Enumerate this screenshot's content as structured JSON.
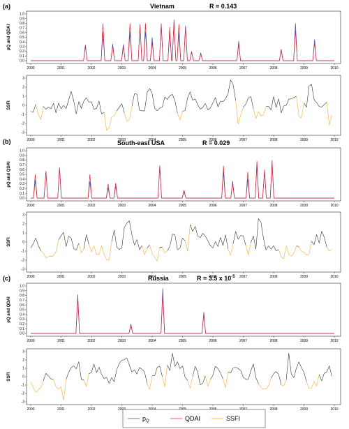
{
  "panels": [
    {
      "label": "(a)",
      "title": "Vietnam",
      "stat": "R = 0.143",
      "top": {
        "ylabel": "pQ and QDAI",
        "ylim": [
          0,
          1
        ],
        "yticks": [
          "0.0",
          "0.1",
          "0.2",
          "0.3",
          "0.4",
          "0.5",
          "0.6",
          "0.7",
          "0.8",
          "0.9",
          "1.0"
        ],
        "xticks": [
          "2000",
          "2001",
          "2002",
          "2003",
          "2004",
          "2005",
          "2006",
          "2007",
          "2008",
          "2009",
          "2010"
        ]
      },
      "bottom": {
        "ylabel": "SSFI",
        "ylim": [
          -3,
          3
        ],
        "yticks": [
          "3",
          "2",
          "1",
          "0",
          "-1",
          "-2",
          "-3"
        ],
        "xticks": [
          "2000",
          "2001",
          "2002",
          "2003",
          "2004",
          "2005",
          "2006",
          "2007",
          "2008",
          "2009",
          "2010"
        ]
      }
    },
    {
      "label": "(b)",
      "title": "South-east USA",
      "stat": "R = 0.029",
      "top": {
        "ylabel": "pQ and QDAI",
        "ylim": [
          0,
          1
        ],
        "yticks": [
          "0.0",
          "0.1",
          "0.2",
          "0.3",
          "0.4",
          "0.5",
          "0.6",
          "0.7",
          "0.8",
          "0.9",
          "1.0"
        ],
        "xticks": [
          "2000",
          "2001",
          "2002",
          "2003",
          "2004",
          "2005",
          "2006",
          "2007",
          "2008",
          "2009",
          "2010"
        ]
      },
      "bottom": {
        "ylabel": "SSFI",
        "ylim": [
          -3,
          3
        ],
        "yticks": [
          "3",
          "2",
          "1",
          "0",
          "-1",
          "-2",
          "-3"
        ],
        "xticks": [
          "2000",
          "2001",
          "2002",
          "2003",
          "2004",
          "2005",
          "2006",
          "2007",
          "2008",
          "2009",
          "2010"
        ]
      }
    },
    {
      "label": "(c)",
      "title": "Russia",
      "stat": "R = 3.5 x 10",
      "stat_exp": "-5",
      "top": {
        "ylabel": "pQ and QDAI",
        "ylim": [
          0,
          1
        ],
        "yticks": [
          "0.0",
          "0.1",
          "0.2",
          "0.3",
          "0.4",
          "0.5",
          "0.6",
          "0.7",
          "0.8",
          "0.9",
          "1.0"
        ],
        "xticks": [
          "2000",
          "2001",
          "2002",
          "2003",
          "2004",
          "2005",
          "2006",
          "2007",
          "2008",
          "2009",
          "2010"
        ]
      },
      "bottom": {
        "ylabel": "SSFI",
        "ylim": [
          -3,
          3
        ],
        "yticks": [
          "3",
          "2",
          "1",
          "0",
          "-1",
          "-2",
          "-3"
        ],
        "xticks": [
          "2000",
          "2001",
          "2002",
          "2003",
          "2004",
          "2005",
          "2006",
          "2007",
          "2008",
          "2009",
          "2010"
        ]
      }
    }
  ],
  "legend": {
    "items": [
      {
        "label": "p",
        "sub": "Q",
        "color": "#3f48cc"
      },
      {
        "label": "QDAI",
        "color": "#e0252c"
      },
      {
        "label": "SSFI",
        "color": "#f5a623"
      }
    ]
  },
  "chart_data": [
    {
      "type": "line",
      "title": "Vietnam",
      "ylabel": "pQ and QDAI",
      "xlim": [
        2000,
        2010
      ],
      "ylim": [
        0,
        1
      ],
      "series": [
        {
          "name": "pQ",
          "color": "#3f48cc",
          "events": [
            [
              2001.8,
              0.34
            ],
            [
              2002.38,
              0.62
            ],
            [
              2002.7,
              0.36
            ],
            [
              2003.05,
              0.35
            ],
            [
              2003.27,
              0.62
            ],
            [
              2003.6,
              0.78
            ],
            [
              2003.78,
              0.62
            ],
            [
              2004.0,
              0.5
            ],
            [
              2004.3,
              0.75
            ],
            [
              2004.58,
              0.62
            ],
            [
              2004.72,
              0.82
            ],
            [
              2004.88,
              0.62
            ],
            [
              2005.1,
              0.75
            ],
            [
              2005.3,
              0.2
            ],
            [
              2005.6,
              0.17
            ],
            [
              2006.85,
              0.42
            ],
            [
              2008.25,
              0.22
            ],
            [
              2008.72,
              0.8
            ],
            [
              2009.35,
              0.45
            ]
          ]
        },
        {
          "name": "QDAI",
          "color": "#e0252c",
          "events": [
            [
              2001.8,
              0.3
            ],
            [
              2002.38,
              0.8
            ],
            [
              2002.7,
              0.32
            ],
            [
              2003.05,
              0.3
            ],
            [
              2003.27,
              0.8
            ],
            [
              2003.6,
              0.75
            ],
            [
              2003.78,
              0.8
            ],
            [
              2004.0,
              0.4
            ],
            [
              2004.3,
              0.8
            ],
            [
              2004.58,
              0.72
            ],
            [
              2004.72,
              0.88
            ],
            [
              2004.88,
              0.78
            ],
            [
              2005.1,
              0.7
            ],
            [
              2005.3,
              0.18
            ],
            [
              2005.6,
              0.15
            ],
            [
              2006.85,
              0.36
            ],
            [
              2008.25,
              0.25
            ],
            [
              2008.72,
              0.65
            ],
            [
              2009.35,
              0.38
            ]
          ]
        }
      ]
    },
    {
      "type": "line",
      "title": "Vietnam",
      "ylabel": "SSFI",
      "xlim": [
        2000,
        2010
      ],
      "ylim": [
        -3,
        3
      ],
      "series": [
        {
          "name": "SSFI",
          "color": "#f5a623",
          "threshold": -1,
          "seed": 11
        }
      ]
    },
    {
      "type": "line",
      "title": "South-east USA",
      "ylabel": "pQ and QDAI",
      "xlim": [
        2000,
        2010
      ],
      "ylim": [
        0,
        1
      ],
      "series": [
        {
          "name": "pQ",
          "color": "#3f48cc",
          "events": [
            [
              2000.15,
              0.38
            ],
            [
              2000.5,
              0.55
            ],
            [
              2000.95,
              0.62
            ],
            [
              2001.95,
              0.35
            ],
            [
              2002.55,
              0.22
            ],
            [
              2002.8,
              0.25
            ],
            [
              2004.25,
              0.66
            ],
            [
              2005.05,
              0.14
            ],
            [
              2006.35,
              0.55
            ],
            [
              2006.65,
              0.36
            ],
            [
              2007.15,
              0.4
            ],
            [
              2007.45,
              0.68
            ],
            [
              2007.7,
              0.55
            ],
            [
              2007.95,
              0.72
            ]
          ]
        },
        {
          "name": "QDAI",
          "color": "#e0252c",
          "events": [
            [
              2000.15,
              0.5
            ],
            [
              2000.5,
              0.57
            ],
            [
              2000.95,
              0.65
            ],
            [
              2001.95,
              0.5
            ],
            [
              2002.55,
              0.3
            ],
            [
              2002.8,
              0.32
            ],
            [
              2004.25,
              0.69
            ],
            [
              2005.05,
              0.17
            ],
            [
              2006.35,
              0.68
            ],
            [
              2006.65,
              0.32
            ],
            [
              2007.15,
              0.55
            ],
            [
              2007.45,
              0.78
            ],
            [
              2007.7,
              0.6
            ],
            [
              2007.95,
              0.8
            ]
          ]
        }
      ]
    },
    {
      "type": "line",
      "title": "South-east USA",
      "ylabel": "SSFI",
      "xlim": [
        2000,
        2010
      ],
      "ylim": [
        -3,
        3
      ],
      "series": [
        {
          "name": "SSFI",
          "color": "#f5a623",
          "threshold": -1,
          "seed": 23
        }
      ]
    },
    {
      "type": "line",
      "title": "Russia",
      "ylabel": "pQ and QDAI",
      "xlim": [
        2000,
        2010
      ],
      "ylim": [
        0,
        1
      ],
      "series": [
        {
          "name": "pQ",
          "color": "#3f48cc",
          "events": [
            [
              2001.55,
              0.82
            ],
            [
              2003.3,
              0.2
            ],
            [
              2004.35,
              0.95
            ],
            [
              2005.7,
              0.45
            ]
          ]
        },
        {
          "name": "QDAI",
          "color": "#e0252c",
          "events": [
            [
              2001.55,
              0.75
            ],
            [
              2003.3,
              0.18
            ],
            [
              2004.35,
              0.82
            ],
            [
              2005.7,
              0.4
            ]
          ]
        }
      ]
    },
    {
      "type": "line",
      "title": "Russia",
      "ylabel": "SSFI",
      "xlim": [
        2000,
        2010
      ],
      "ylim": [
        -3,
        3
      ],
      "series": [
        {
          "name": "SSFI",
          "color": "#f5a623",
          "threshold": -1,
          "seed": 37
        }
      ]
    }
  ]
}
